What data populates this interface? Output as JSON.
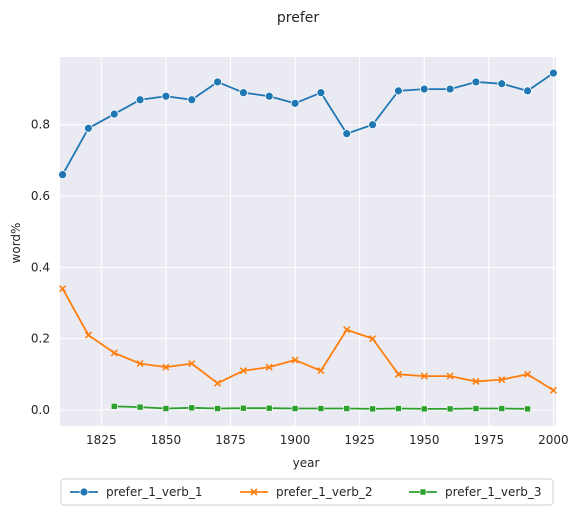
{
  "chart_data": {
    "type": "line",
    "title": "prefer",
    "xlabel": "year",
    "ylabel": "word%",
    "xlim": [
      1809,
      2001
    ],
    "ylim": [
      -0.045,
      0.99
    ],
    "x_ticks": [
      1825,
      1850,
      1875,
      1900,
      1925,
      1950,
      1975,
      2000
    ],
    "y_ticks": [
      0.0,
      0.2,
      0.4,
      0.6,
      0.8
    ],
    "grid": true,
    "legend_position": "bottom",
    "series": [
      {
        "name": "prefer_1_verb_1",
        "color": "#1f77b4",
        "marker": "circle",
        "x": [
          1810,
          1820,
          1830,
          1840,
          1850,
          1860,
          1870,
          1880,
          1890,
          1900,
          1910,
          1920,
          1930,
          1940,
          1950,
          1960,
          1970,
          1980,
          1990,
          2000
        ],
        "y": [
          0.66,
          0.79,
          0.83,
          0.87,
          0.88,
          0.87,
          0.92,
          0.89,
          0.88,
          0.86,
          0.89,
          0.775,
          0.8,
          0.895,
          0.9,
          0.9,
          0.92,
          0.915,
          0.895,
          0.945
        ]
      },
      {
        "name": "prefer_1_verb_2",
        "color": "#ff7f0e",
        "marker": "x",
        "x": [
          1810,
          1820,
          1830,
          1840,
          1850,
          1860,
          1870,
          1880,
          1890,
          1900,
          1910,
          1920,
          1930,
          1940,
          1950,
          1960,
          1970,
          1980,
          1990,
          2000
        ],
        "y": [
          0.34,
          0.21,
          0.16,
          0.13,
          0.12,
          0.13,
          0.075,
          0.11,
          0.12,
          0.14,
          0.11,
          0.225,
          0.2,
          0.1,
          0.095,
          0.095,
          0.08,
          0.085,
          0.1,
          0.055
        ]
      },
      {
        "name": "prefer_1_verb_3",
        "color": "#2ca02c",
        "marker": "square",
        "x": [
          1830,
          1840,
          1850,
          1860,
          1870,
          1880,
          1890,
          1900,
          1910,
          1920,
          1930,
          1940,
          1950,
          1960,
          1970,
          1980,
          1990
        ],
        "y": [
          0.01,
          0.008,
          0.004,
          0.006,
          0.004,
          0.005,
          0.005,
          0.004,
          0.004,
          0.004,
          0.003,
          0.004,
          0.003,
          0.003,
          0.004,
          0.004,
          0.003
        ]
      }
    ]
  }
}
